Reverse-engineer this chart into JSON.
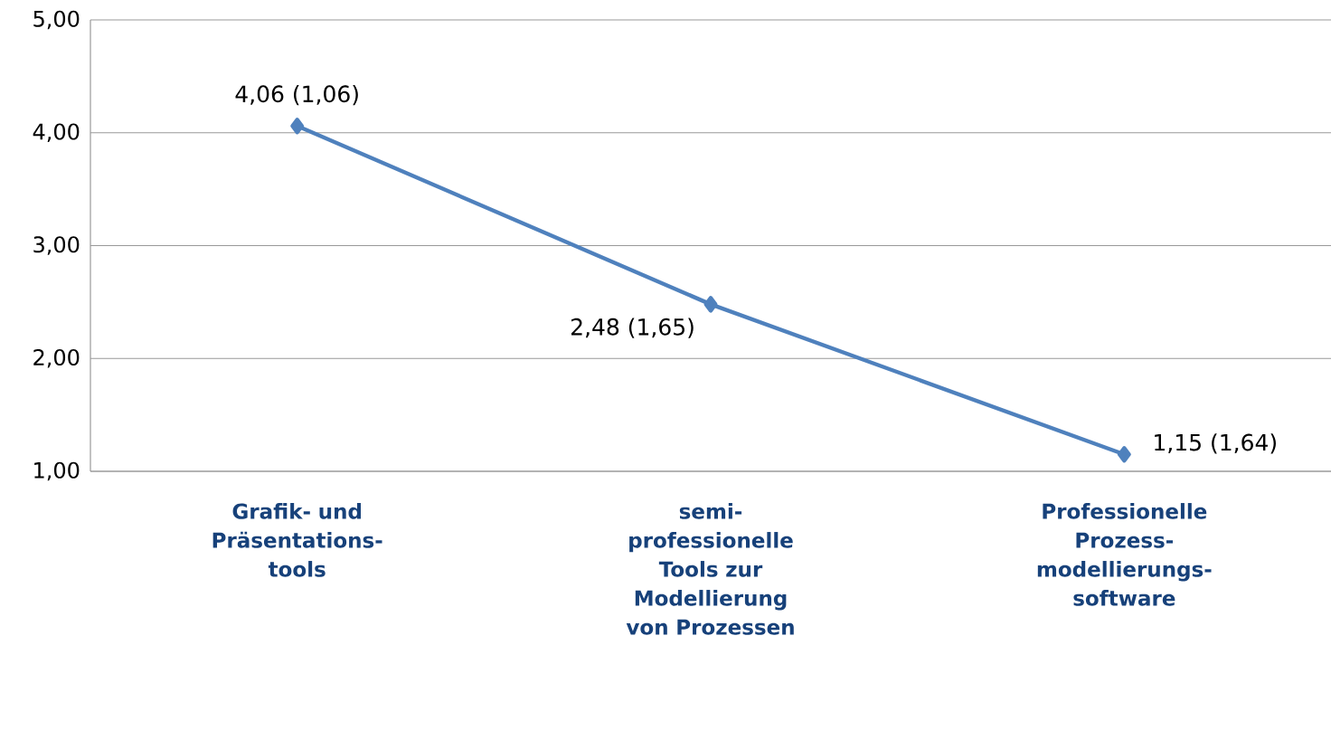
{
  "chart_data": {
    "type": "line",
    "categories": [
      "Grafik- und Präsentations-tools",
      "semi-professionelle Tools zur Modellierung von Prozessen",
      "Professionelle Prozess-modellierungs-software"
    ],
    "series": [
      {
        "color": "#4f81bd",
        "values": [
          4.06,
          2.48,
          1.15
        ],
        "value_labels": [
          "4,06 (1,06)",
          "2,48 (1,65)",
          "1,15 (1,64)"
        ]
      }
    ],
    "ylim": [
      1,
      5
    ],
    "yticks": [
      {
        "value": 1,
        "label": "1,00"
      },
      {
        "value": 2,
        "label": "2,00"
      },
      {
        "value": 3,
        "label": "3,00"
      },
      {
        "value": 4,
        "label": "4,00"
      },
      {
        "value": 5,
        "label": "5,00"
      }
    ],
    "grid": "y",
    "marker": "diamond",
    "line_style": "solid"
  }
}
